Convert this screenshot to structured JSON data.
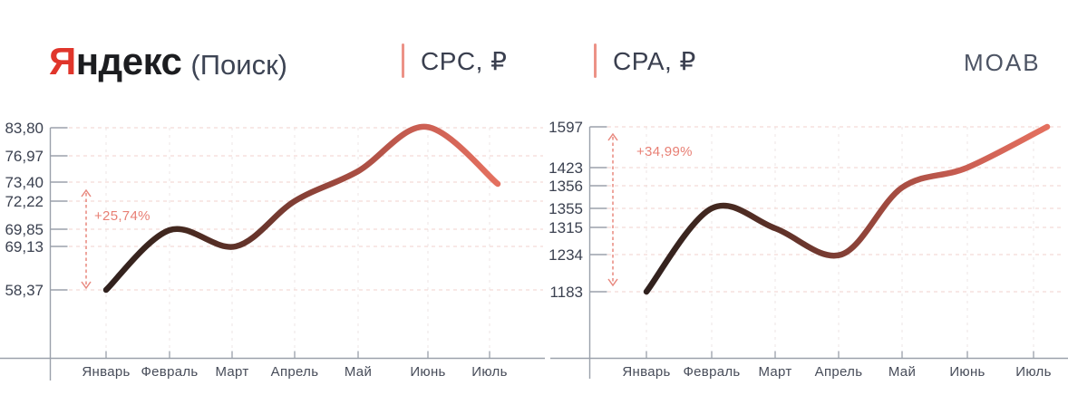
{
  "header": {
    "brand_letter": "Я",
    "brand_rest": "ндекс",
    "brand_suffix": "(Поиск)",
    "watermark": "MOAB"
  },
  "colors": {
    "brand_red": "#e0352b",
    "accent": "#e8887e",
    "annotation_text": "#e87f74",
    "line_gradient": [
      "#30211e",
      "#43281f",
      "#6b362d",
      "#a04a3f",
      "#cb5f53",
      "#e4705f"
    ],
    "grid_horizontal": "#f3dbd7",
    "grid_vertical": "#efe9e8",
    "axis": "#9ba1ab"
  },
  "chart_data": [
    {
      "type": "line",
      "title": "CPC, ₽",
      "categories": [
        "Январь",
        "Февраль",
        "Март",
        "Апрель",
        "Май",
        "Июнь",
        "Июль"
      ],
      "values": [
        58.37,
        69.85,
        69.13,
        72.22,
        76.97,
        83.8,
        73.4
      ],
      "ytick_labels": [
        "83,80",
        "76,97",
        "73,40",
        "72,22",
        "69,85",
        "69,13",
        "58,37"
      ],
      "annotation": "+25,74%",
      "ylim": [
        58.37,
        83.8
      ],
      "xlabel": "",
      "ylabel": "CPC, ₽",
      "grid": true,
      "legend": false
    },
    {
      "type": "line",
      "title": "CPA, ₽",
      "categories": [
        "Январь",
        "Февраль",
        "Март",
        "Апрель",
        "Май",
        "Июнь",
        "Июль"
      ],
      "values": [
        1183,
        1355,
        1315,
        1234,
        1356,
        1423,
        1597
      ],
      "ytick_labels": [
        "1597",
        "1423",
        "1356",
        "1355",
        "1315",
        "1234",
        "1183"
      ],
      "annotation": "+34,99%",
      "ylim": [
        1183,
        1597
      ],
      "xlabel": "",
      "ylabel": "CPA, ₽",
      "grid": true,
      "legend": false
    }
  ]
}
